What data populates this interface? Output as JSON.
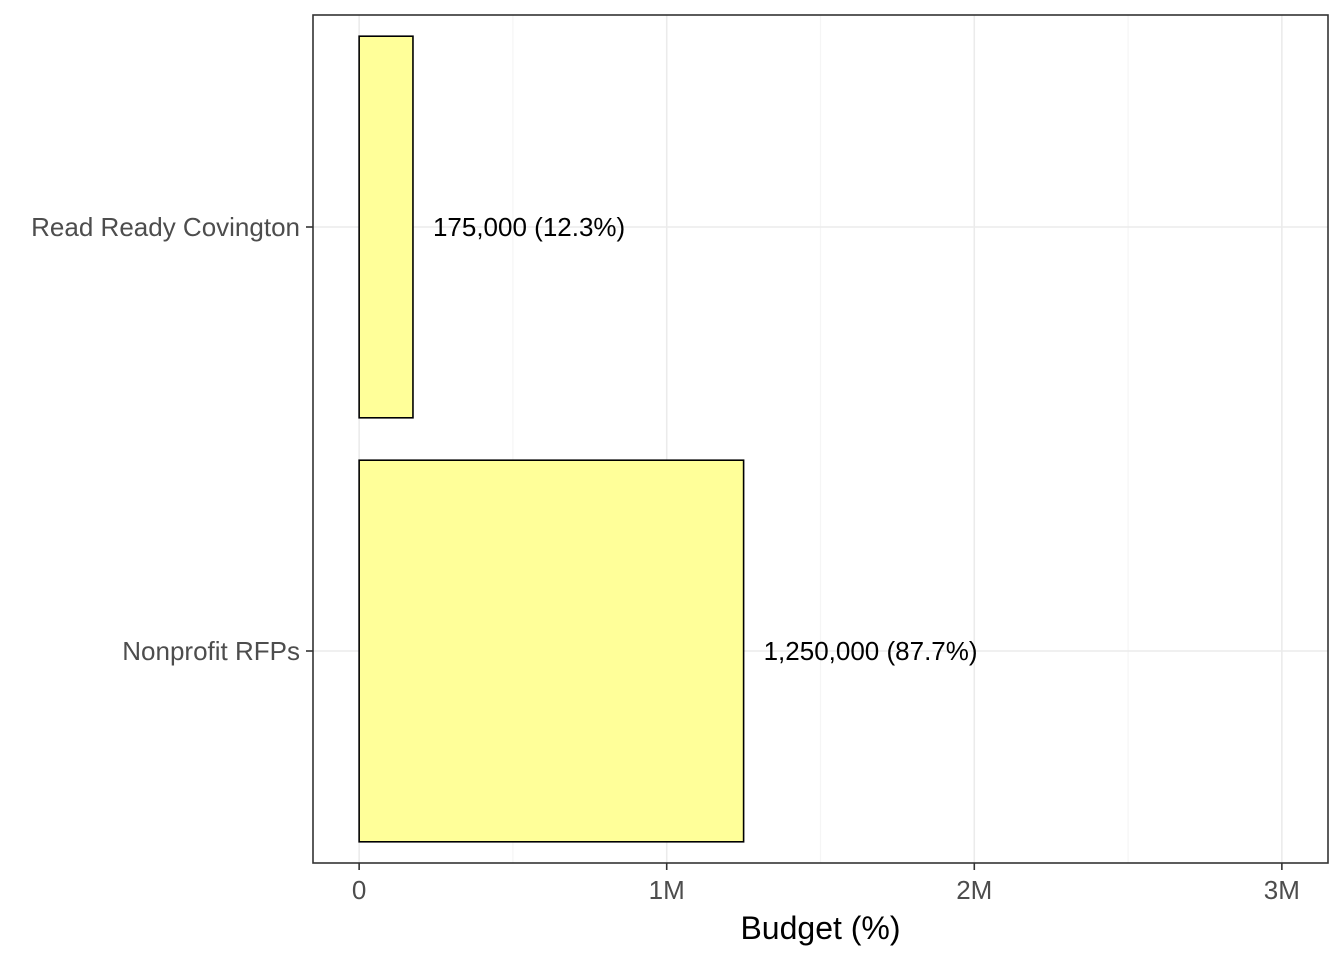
{
  "chart_data": {
    "type": "bar",
    "orientation": "horizontal",
    "categories": [
      "Read Ready Covington",
      "Nonprofit RFPs"
    ],
    "values": [
      175000,
      1250000
    ],
    "data_labels": [
      "175,000 (12.3%)",
      "1,250,000 (87.7%)"
    ],
    "title": "",
    "xlabel": "Budget (%)",
    "ylabel": "",
    "xlim": [
      -150000,
      3150000
    ],
    "x_ticks": [
      0,
      1000000,
      2000000,
      3000000
    ],
    "x_tick_labels": [
      "0",
      "1M",
      "2M",
      "3M"
    ],
    "grid": true,
    "legend": "none",
    "colors": {
      "bar_fill": "#FFFF99",
      "bar_stroke": "#000000",
      "grid_major": "#EBEBEB",
      "grid_minor": "#F5F5F5",
      "panel_border": "#333333",
      "tick_text": "#4D4D4D"
    }
  }
}
